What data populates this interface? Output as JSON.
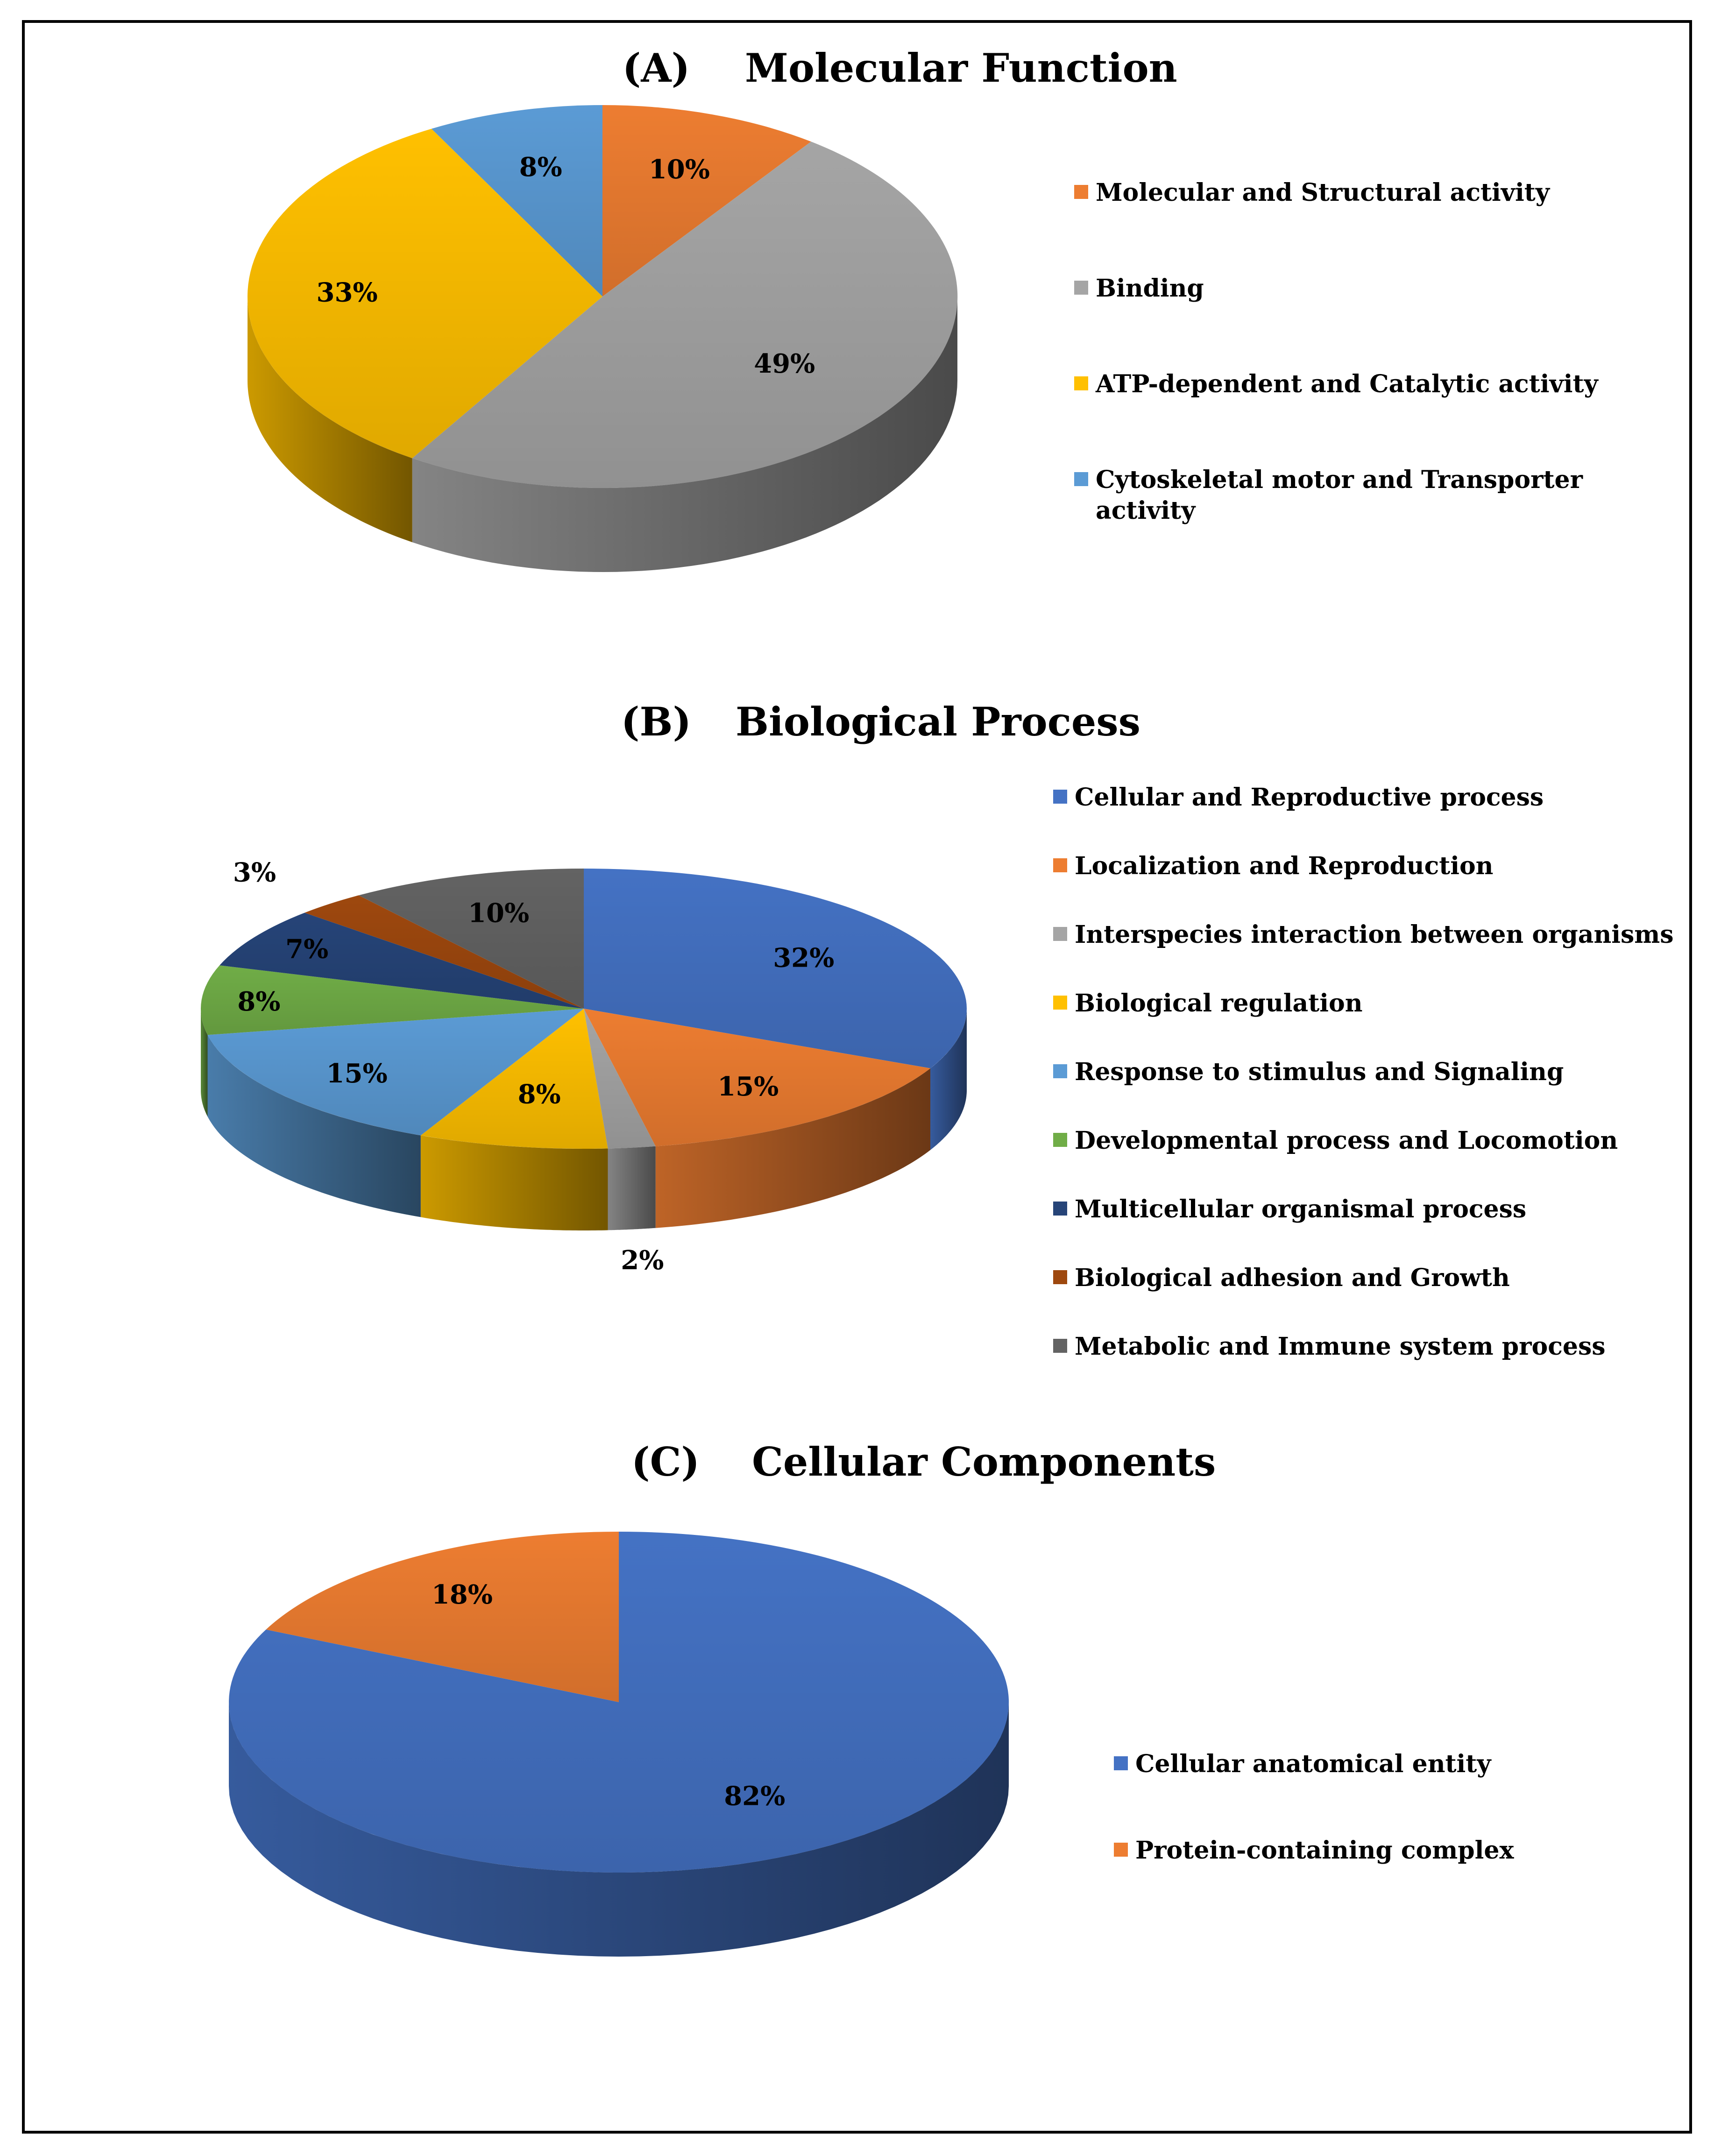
{
  "chart_data": [
    {
      "type": "pie",
      "title_letter": "(A)",
      "title": "Molecular Function",
      "categories": [
        "Molecular and Structural activity",
        "Binding",
        "ATP-dependent and Catalytic activity",
        "Cytoskeletal motor and Transporter activity"
      ],
      "values": [
        10,
        49,
        33,
        8
      ],
      "labels": [
        "10%",
        "49%",
        "33%",
        "8%"
      ],
      "legend_lines": [
        [
          "Molecular and Structural activity"
        ],
        [
          "Binding"
        ],
        [
          "ATP-dependent and Catalytic activity"
        ],
        [
          "Cytoskeletal motor and Transporter",
          "activity"
        ]
      ],
      "colors": [
        "#ED7D31",
        "#A5A5A5",
        "#FFC000",
        "#5B9BD5"
      ],
      "legend_position": "right",
      "style": "3d"
    },
    {
      "type": "pie",
      "title_letter": "(B)",
      "title": "Biological Process",
      "categories": [
        "Cellular and Reproductive process",
        "Localization and Reproduction",
        "Interspecies interaction between organisms",
        "Biological regulation",
        "Response to stimulus and Signaling",
        "Developmental process and Locomotion",
        "Multicellular organismal process",
        "Biological adhesion and Growth",
        "Metabolic and Immune system process"
      ],
      "values": [
        32,
        15,
        2,
        8,
        15,
        8,
        7,
        3,
        10
      ],
      "labels": [
        "32%",
        "15%",
        "2%",
        "8%",
        "15%",
        "8%",
        "7%",
        "3%",
        "10%"
      ],
      "legend_lines": [
        [
          "Cellular and Reproductive process"
        ],
        [
          "Localization and Reproduction"
        ],
        [
          "Interspecies interaction between organisms"
        ],
        [
          "Biological regulation"
        ],
        [
          "Response to stimulus and Signaling"
        ],
        [
          "Developmental process and Locomotion"
        ],
        [
          "Multicellular organismal process"
        ],
        [
          "Biological adhesion and Growth"
        ],
        [
          "Metabolic and Immune system process"
        ]
      ],
      "colors": [
        "#4472C4",
        "#ED7D31",
        "#A5A5A5",
        "#FFC000",
        "#5B9BD5",
        "#70AD47",
        "#264478",
        "#9E480E",
        "#636363"
      ],
      "legend_position": "right",
      "style": "3d"
    },
    {
      "type": "pie",
      "title_letter": "(C)",
      "title": "Cellular Components",
      "categories": [
        "Cellular anatomical entity",
        "Protein-containing complex"
      ],
      "values": [
        82,
        18
      ],
      "labels": [
        "82%",
        "18%"
      ],
      "legend_lines": [
        [
          "Cellular anatomical entity"
        ],
        [
          "Protein-containing complex"
        ]
      ],
      "colors": [
        "#4472C4",
        "#ED7D31"
      ],
      "legend_position": "right",
      "style": "3d"
    }
  ]
}
